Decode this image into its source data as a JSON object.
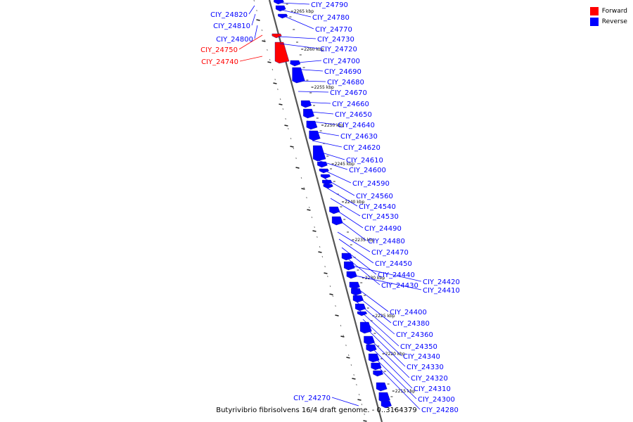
{
  "legend": {
    "forward": {
      "label": "Forward",
      "color": "#ff0000"
    },
    "reverse": {
      "label": "Reverse",
      "color": "#0000ff"
    }
  },
  "caption": "Butyrivibrio fibrisolvens 16/4 draft genome. - 0..3164379",
  "ticks": [
    "2265 kbp",
    "2260 kbp",
    "2255 kbp",
    "2250 kbp",
    "2245 kbp",
    "2240 kbp",
    "2235 kbp",
    "2230 kbp",
    "2225 kbp",
    "2220 kbp",
    "2215 kbp"
  ],
  "forward_labels": [
    "CIY_24750",
    "CIY_24740"
  ],
  "left_labels": [
    "CIY_24820",
    "CIY_24810",
    "CIY_24800",
    "CIY_24270"
  ],
  "right_labels": [
    "CIY_24790",
    "CIY_24780",
    "CIY_24770",
    "CIY_24730",
    "CIY_24720",
    "CIY_24700",
    "CIY_24690",
    "CIY_24680",
    "CIY_24670",
    "CIY_24660",
    "CIY_24650",
    "CIY_24640",
    "CIY_24630",
    "CIY_24620",
    "CIY_24610",
    "CIY_24600",
    "CIY_24590",
    "CIY_24560",
    "CIY_24540",
    "CIY_24530",
    "CIY_24490",
    "CIY_24480",
    "CIY_24470",
    "CIY_24450",
    "CIY_24440",
    "CIY_24430",
    "CIY_24420",
    "CIY_24410",
    "CIY_24400",
    "CIY_24380",
    "CIY_24360",
    "CIY_24350",
    "CIY_24340",
    "CIY_24330",
    "CIY_24320",
    "CIY_24310",
    "CIY_24300",
    "CIY_24280"
  ]
}
